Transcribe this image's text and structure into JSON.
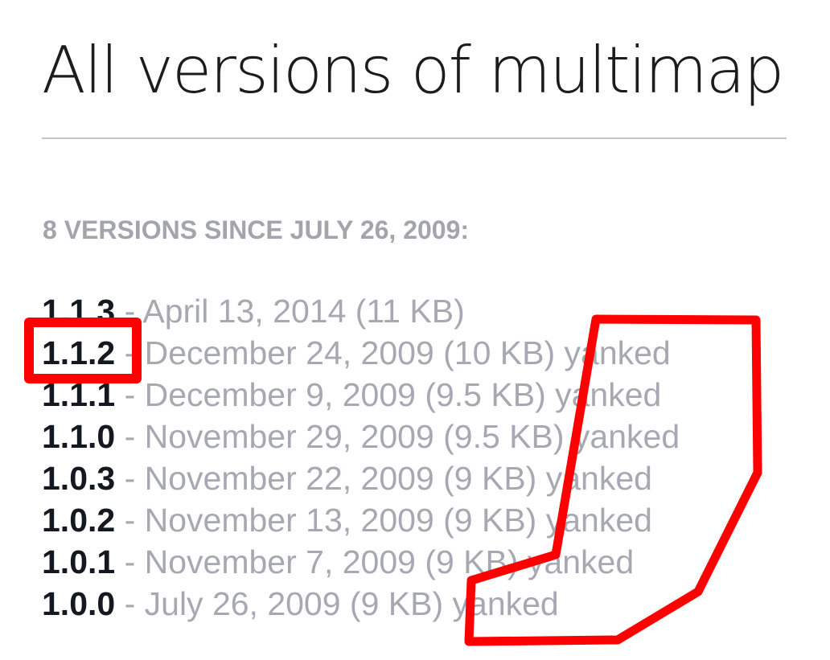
{
  "page": {
    "title": "All versions of multimap",
    "summary": "8 VERSIONS SINCE JULY 26, 2009:"
  },
  "versions": [
    {
      "number": "1.1.3",
      "meta": " - April 13, 2014 (11 KB)"
    },
    {
      "number": "1.1.2",
      "meta": " - December 24, 2009 (10 KB) yanked"
    },
    {
      "number": "1.1.1",
      "meta": " - December 9, 2009 (9.5 KB) yanked"
    },
    {
      "number": "1.1.0",
      "meta": " - November 29, 2009 (9.5 KB) yanked"
    },
    {
      "number": "1.0.3",
      "meta": " - November 22, 2009 (9 KB) yanked"
    },
    {
      "number": "1.0.2",
      "meta": " - November 13, 2009 (9 KB) yanked"
    },
    {
      "number": "1.0.1",
      "meta": " - November 7, 2009 (9 KB) yanked"
    },
    {
      "number": "1.0.0",
      "meta": " - July 26, 2009 (9 KB) yanked"
    }
  ],
  "annotation": {
    "color": "#ff0000",
    "highlighted_version": "1.1.2"
  }
}
